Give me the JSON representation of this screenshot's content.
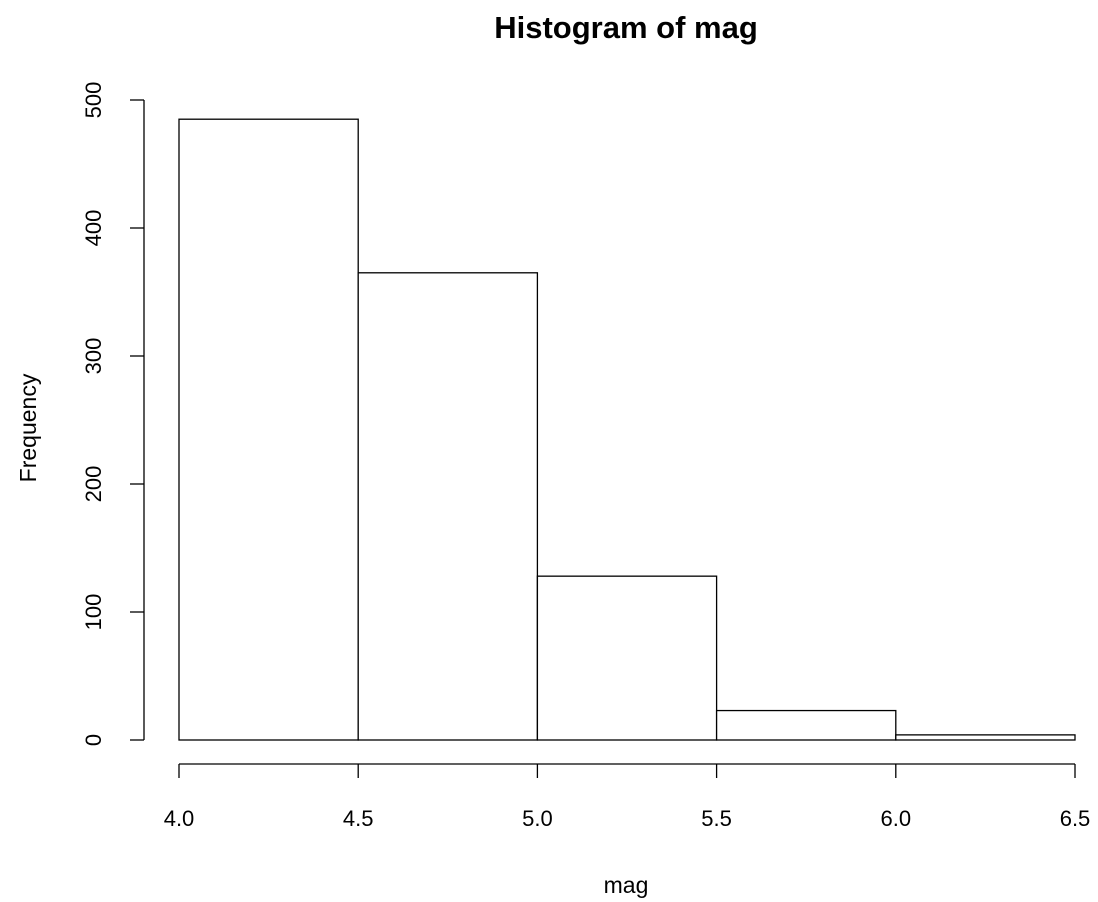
{
  "chart_data": {
    "type": "bar",
    "title": "Histogram of mag",
    "xlabel": "mag",
    "ylabel": "Frequency",
    "bins": [
      {
        "start": 4.0,
        "end": 4.5,
        "count": 485
      },
      {
        "start": 4.5,
        "end": 5.0,
        "count": 365
      },
      {
        "start": 5.0,
        "end": 5.5,
        "count": 128
      },
      {
        "start": 5.5,
        "end": 6.0,
        "count": 23
      },
      {
        "start": 6.0,
        "end": 6.5,
        "count": 4
      }
    ],
    "xlim": [
      4.0,
      6.5
    ],
    "ylim": [
      0,
      500
    ],
    "x_ticks": [
      "4.0",
      "4.5",
      "5.0",
      "5.5",
      "6.0",
      "6.5"
    ],
    "y_ticks": [
      "0",
      "100",
      "200",
      "300",
      "400",
      "500"
    ],
    "grid": false,
    "legend": "none",
    "colors": {
      "bar_fill": "#ffffff",
      "bar_stroke": "#000000"
    }
  }
}
